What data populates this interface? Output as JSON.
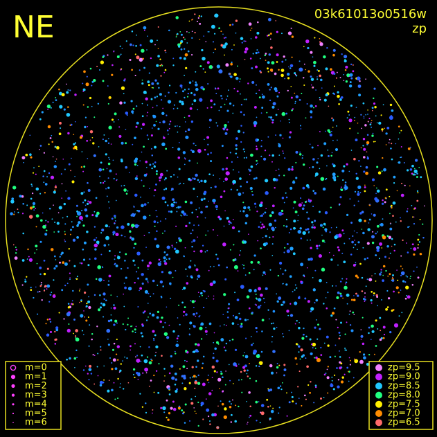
{
  "header": {
    "direction": "NE",
    "frame_id": "03k61013o0516w",
    "mode": "zp"
  },
  "magnitude_legend": [
    "m=0",
    "m=1",
    "m=2",
    "m=3",
    "m=4",
    "m=5",
    "m=6"
  ],
  "zp_legend": [
    {
      "label": "zp=9.5",
      "color": "#f080ff"
    },
    {
      "label": "zp=9.0",
      "color": "#c020ff"
    },
    {
      "label": "zp=8.5",
      "color": "#20c8ff"
    },
    {
      "label": "zp=8.0",
      "color": "#20ff80"
    },
    {
      "label": "zp=7.5",
      "color": "#ffee00"
    },
    {
      "label": "zp=7.0",
      "color": "#ff8c00"
    },
    {
      "label": "zp=6.5",
      "color": "#ff6a6a"
    }
  ]
}
